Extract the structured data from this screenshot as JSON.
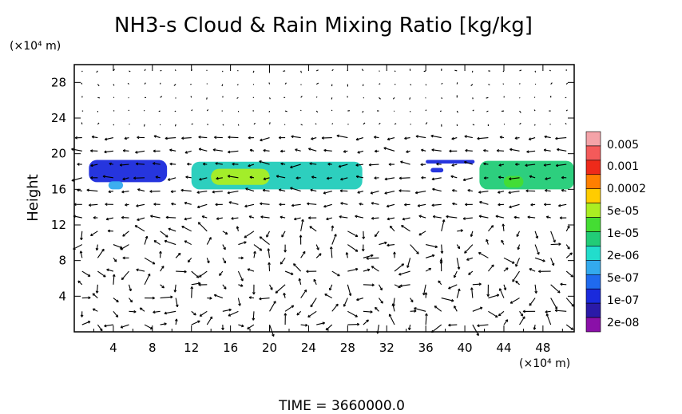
{
  "chart_data": {
    "type": "heatmap",
    "title": "NH3-s Cloud & Rain Mixing Ratio [kg/kg]",
    "ylabel": "Height",
    "y_unit": "(×10⁴ m)",
    "x_unit": "(×10⁴ m)",
    "footer": "TIME = 3660000.0",
    "xlim": [
      0,
      51.2
    ],
    "ylim": [
      0,
      30
    ],
    "x_ticks": [
      "4",
      "8",
      "12",
      "16",
      "20",
      "24",
      "28",
      "32",
      "36",
      "40",
      "44",
      "48"
    ],
    "y_ticks": [
      "4",
      "8",
      "12",
      "16",
      "20",
      "24",
      "28"
    ],
    "colorbar": {
      "labels": [
        "0.005",
        "0.001",
        "0.0002",
        "5e-05",
        "1e-05",
        "2e-06",
        "5e-07",
        "1e-07",
        "2e-08"
      ],
      "colors": [
        "#f4a3a8",
        "#f45a5a",
        "#ee2a1a",
        "#ff7f00",
        "#ffcc00",
        "#aaee22",
        "#44dd33",
        "#22cc77",
        "#22ddcc",
        "#33aaee",
        "#1f6aee",
        "#1a2adc",
        "#2a1aa8",
        "#8a10a8"
      ]
    },
    "cloud_regions": [
      {
        "x": [
          1.5,
          9.5
        ],
        "y": [
          16.8,
          19.3
        ],
        "level": "1e-07"
      },
      {
        "x": [
          3.5,
          5.0
        ],
        "y": [
          16.0,
          16.9
        ],
        "level": "5e-07"
      },
      {
        "x": [
          12.0,
          29.5
        ],
        "y": [
          16.0,
          19.1
        ],
        "level": "1e-06"
      },
      {
        "x": [
          14.0,
          20.0
        ],
        "y": [
          16.5,
          18.3
        ],
        "level": "5e-05"
      },
      {
        "x": [
          36.0,
          41.0
        ],
        "y": [
          18.9,
          19.3
        ],
        "level": "1e-07"
      },
      {
        "x": [
          36.5,
          37.8
        ],
        "y": [
          17.9,
          18.4
        ],
        "level": "1e-07"
      },
      {
        "x": [
          41.5,
          51.2
        ],
        "y": [
          16.0,
          19.2
        ],
        "level": "2e-06"
      },
      {
        "x": [
          44.0,
          46.0
        ],
        "y": [
          16.2,
          17.5
        ],
        "level": "1e-05"
      }
    ]
  }
}
